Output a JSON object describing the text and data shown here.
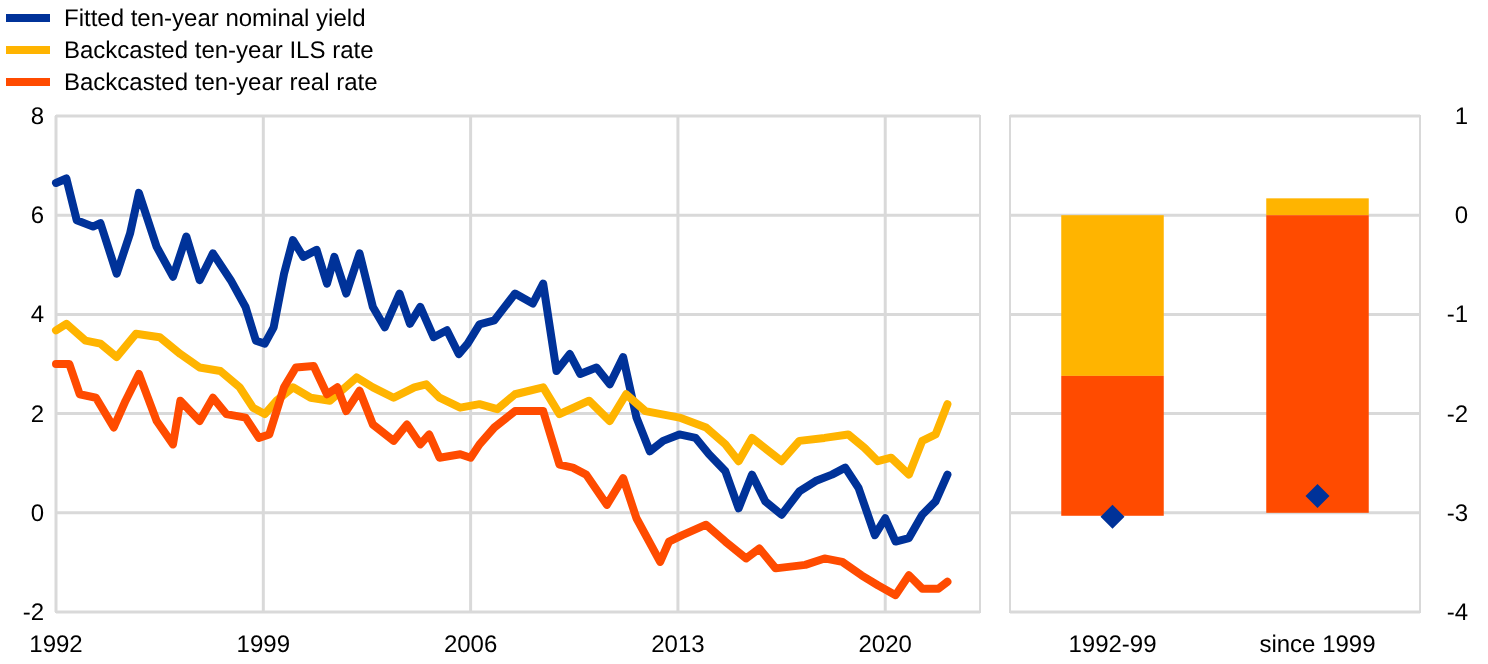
{
  "chart_data": [
    {
      "type": "line",
      "xlim": [
        1992,
        2023.2
      ],
      "xticks": [
        1992,
        1999,
        2006,
        2013,
        2020
      ],
      "ylim": [
        -2,
        8
      ],
      "yticks": [
        -2,
        0,
        2,
        4,
        6,
        8
      ],
      "grid": true,
      "legend": "top left",
      "line_style": "solid",
      "marker": "none",
      "series": [
        {
          "name": "Fitted ten-year nominal yield",
          "color": "#003299",
          "x": [
            1992,
            1992.35,
            1992.7,
            1993.25,
            1993.5,
            1994.05,
            1994.5,
            1994.8,
            1995.4,
            1995.95,
            1996.4,
            1996.85,
            1997.3,
            1997.9,
            1998.4,
            1998.75,
            1999.05,
            1999.35,
            1999.7,
            2000,
            2000.35,
            2000.8,
            2001.15,
            2001.4,
            2001.8,
            2002.25,
            2002.7,
            2003.1,
            2003.6,
            2003.95,
            2004.3,
            2004.75,
            2005.2,
            2005.6,
            2005.9,
            2006.3,
            2006.8,
            2007.5,
            2008.1,
            2008.45,
            2008.9,
            2009.35,
            2009.7,
            2010.25,
            2010.7,
            2011.15,
            2011.6,
            2012.05,
            2012.5,
            2013.05,
            2013.6,
            2014.05,
            2014.6,
            2015.05,
            2015.5,
            2015.95,
            2016.5,
            2017.1,
            2017.65,
            2018.2,
            2018.65,
            2019.1,
            2019.65,
            2020,
            2020.35,
            2020.8,
            2021.25,
            2021.7,
            2022.1
          ],
          "values": [
            6.65,
            6.74,
            5.9,
            5.77,
            5.84,
            4.82,
            5.63,
            6.45,
            5.36,
            4.76,
            5.57,
            4.69,
            5.23,
            4.69,
            4.15,
            3.47,
            3.41,
            3.74,
            4.82,
            5.5,
            5.16,
            5.3,
            4.62,
            5.16,
            4.42,
            5.23,
            4.15,
            3.74,
            4.42,
            3.81,
            4.15,
            3.54,
            3.68,
            3.2,
            3.41,
            3.8,
            3.88,
            4.42,
            4.22,
            4.62,
            2.86,
            3.2,
            2.8,
            2.93,
            2.59,
            3.14,
            1.92,
            1.24,
            1.45,
            1.58,
            1.51,
            1.18,
            0.84,
            0.09,
            0.77,
            0.23,
            -0.04,
            0.43,
            0.64,
            0.77,
            0.91,
            0.5,
            -0.45,
            -0.11,
            -0.58,
            -0.51,
            -0.04,
            0.23,
            0.77
          ]
        },
        {
          "name": "Backcasted ten-year ILS rate",
          "color": "#ffb400",
          "x": [
            1992,
            1992.35,
            1993,
            1993.5,
            1994.05,
            1994.7,
            1995.5,
            1996.2,
            1996.85,
            1997.55,
            1998.2,
            1998.65,
            1999.05,
            1999.45,
            2000,
            2000.6,
            2001.25,
            2002.15,
            2002.7,
            2003.4,
            2004.1,
            2004.5,
            2004.95,
            2005.65,
            2006.3,
            2006.9,
            2007.5,
            2008.45,
            2009,
            2010,
            2010.7,
            2011.25,
            2011.9,
            2013.05,
            2013.95,
            2014.6,
            2015.05,
            2015.5,
            2016.5,
            2017.1,
            2017.95,
            2018.75,
            2019.3,
            2019.75,
            2020.2,
            2020.8,
            2021.25,
            2021.7,
            2022.1
          ],
          "values": [
            3.68,
            3.81,
            3.47,
            3.41,
            3.14,
            3.61,
            3.54,
            3.2,
            2.93,
            2.86,
            2.53,
            2.12,
            1.99,
            2.26,
            2.53,
            2.32,
            2.26,
            2.73,
            2.53,
            2.32,
            2.53,
            2.59,
            2.32,
            2.12,
            2.19,
            2.09,
            2.39,
            2.53,
            1.99,
            2.26,
            1.85,
            2.39,
            2.05,
            1.92,
            1.72,
            1.38,
            1.04,
            1.51,
            1.04,
            1.45,
            1.51,
            1.58,
            1.31,
            1.04,
            1.11,
            0.77,
            1.45,
            1.58,
            2.19
          ]
        },
        {
          "name": "Backcasted ten-year real rate",
          "color": "#ff4b00",
          "x": [
            1992,
            1992.45,
            1992.8,
            1993.35,
            1993.95,
            1994.35,
            1994.8,
            1995.4,
            1995.95,
            1996.2,
            1996.85,
            1997.3,
            1997.75,
            1998.4,
            1998.85,
            1999.2,
            1999.7,
            2000.1,
            2000.7,
            2001.15,
            2001.5,
            2001.8,
            2002.25,
            2002.7,
            2003.4,
            2003.85,
            2004.3,
            2004.6,
            2004.95,
            2005.65,
            2006,
            2006.3,
            2006.8,
            2007.5,
            2008.45,
            2009,
            2009.45,
            2009.9,
            2010.6,
            2011.15,
            2011.6,
            2012.4,
            2012.7,
            2013.15,
            2013.95,
            2014.6,
            2015.3,
            2015.75,
            2016.3,
            2017.3,
            2017.95,
            2018.55,
            2019.2,
            2019.75,
            2020.35,
            2020.8,
            2021.25,
            2021.8,
            2022.1
          ],
          "values": [
            3.0,
            3.0,
            2.39,
            2.32,
            1.72,
            2.26,
            2.8,
            1.85,
            1.38,
            2.26,
            1.85,
            2.32,
            1.99,
            1.92,
            1.51,
            1.58,
            2.53,
            2.93,
            2.96,
            2.39,
            2.53,
            2.05,
            2.46,
            1.78,
            1.45,
            1.78,
            1.38,
            1.58,
            1.11,
            1.18,
            1.11,
            1.38,
            1.72,
            2.05,
            2.05,
            0.97,
            0.91,
            0.77,
            0.16,
            0.7,
            -0.11,
            -0.99,
            -0.58,
            -0.45,
            -0.24,
            -0.58,
            -0.92,
            -0.72,
            -1.12,
            -1.05,
            -0.92,
            -0.99,
            -1.26,
            -1.46,
            -1.66,
            -1.26,
            -1.53,
            -1.53,
            -1.39
          ]
        }
      ]
    },
    {
      "type": "bar",
      "stacked": true,
      "categories": [
        "1992-99",
        "since 1999"
      ],
      "ylim": [
        -4,
        1
      ],
      "yticks": [
        -4,
        -3,
        -2,
        -1,
        0,
        1
      ],
      "grid": "y",
      "legend": false,
      "series": [
        {
          "color": "#ffb400",
          "values": [
            -1.62,
            0.17
          ]
        },
        {
          "color": "#ff4b00",
          "values": [
            -1.41,
            -3.0
          ]
        },
        {
          "type": "scatter",
          "marker": "diamond",
          "color": "#003299",
          "x": [
            "1992-99",
            "since 1999"
          ],
          "values": [
            -3.04,
            -2.83
          ]
        }
      ]
    }
  ]
}
